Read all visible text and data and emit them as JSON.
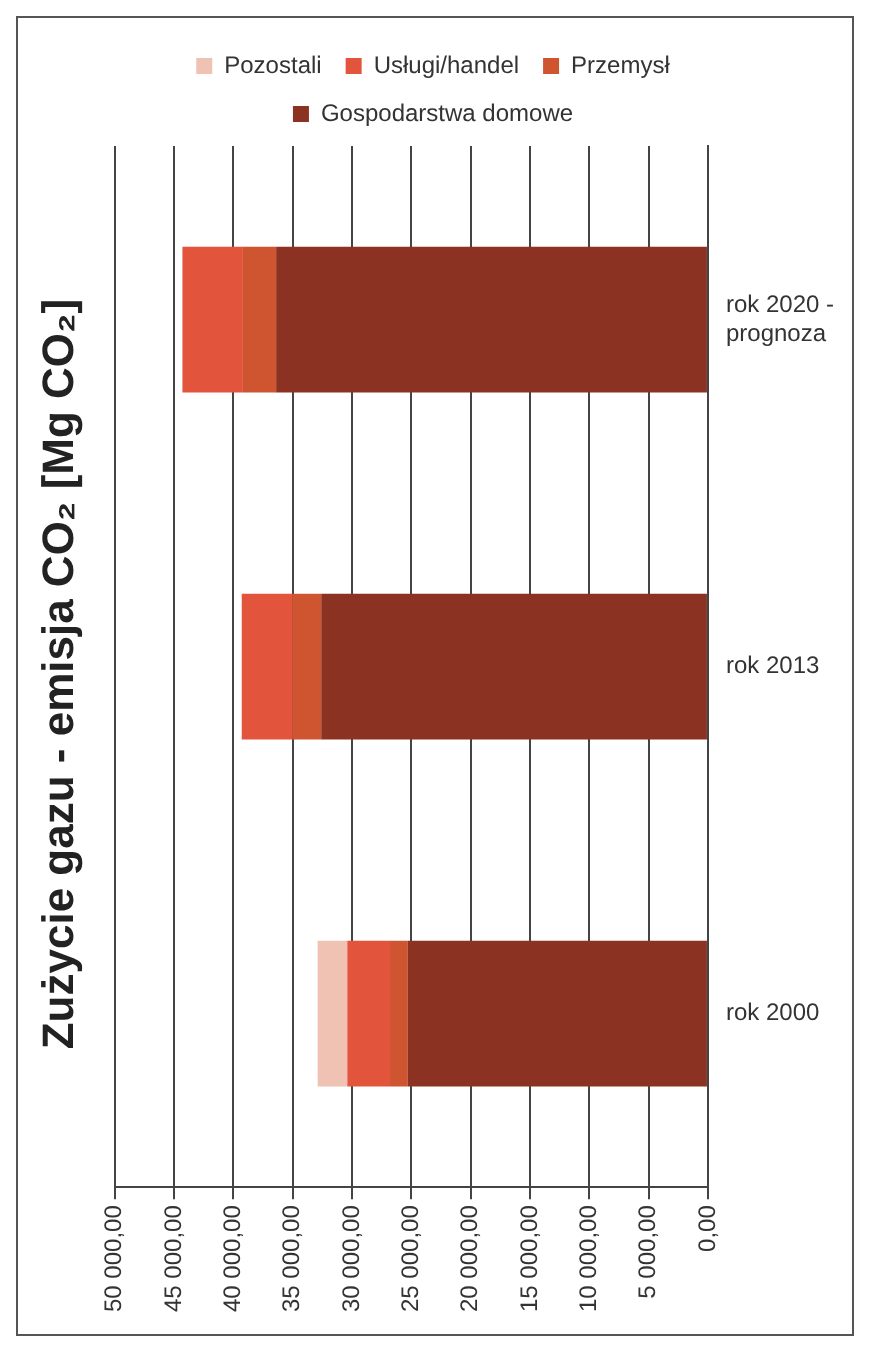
{
  "chart_data": {
    "type": "bar",
    "orientation": "horizontal",
    "title": "Zużycie gazu - emisja CO₂ [Mg CO₂]",
    "categories": [
      "rok 2020 - prognoza",
      "rok 2013",
      "rok 2000"
    ],
    "stacked": true,
    "series": [
      {
        "name": "Gospodarstwa domowe",
        "color": "#8c3222",
        "values": [
          36400,
          32600,
          25300
        ]
      },
      {
        "name": "Przemysł",
        "color": "#cf5530",
        "values": [
          2800,
          2400,
          1500
        ]
      },
      {
        "name": "Usługi/handel",
        "color": "#e2553c",
        "values": [
          5100,
          4300,
          3600
        ]
      },
      {
        "name": "Pozostali",
        "color": "#f0c2b4",
        "values": [
          0,
          0,
          2500
        ]
      }
    ],
    "xlim": [
      50000,
      0
    ],
    "xticks": [
      {
        "value": 0,
        "label": "0,00"
      },
      {
        "value": 5000,
        "label": "5 000,00"
      },
      {
        "value": 10000,
        "label": "10 000,00"
      },
      {
        "value": 15000,
        "label": "15 000,00"
      },
      {
        "value": 20000,
        "label": "20 000,00"
      },
      {
        "value": 25000,
        "label": "25 000,00"
      },
      {
        "value": 30000,
        "label": "30 000,00"
      },
      {
        "value": 35000,
        "label": "35 000,00"
      },
      {
        "value": 40000,
        "label": "40 000,00"
      },
      {
        "value": 45000,
        "label": "45 000,00"
      },
      {
        "value": 50000,
        "label": "50 000,00"
      }
    ],
    "grid": "x",
    "legend": "top"
  }
}
